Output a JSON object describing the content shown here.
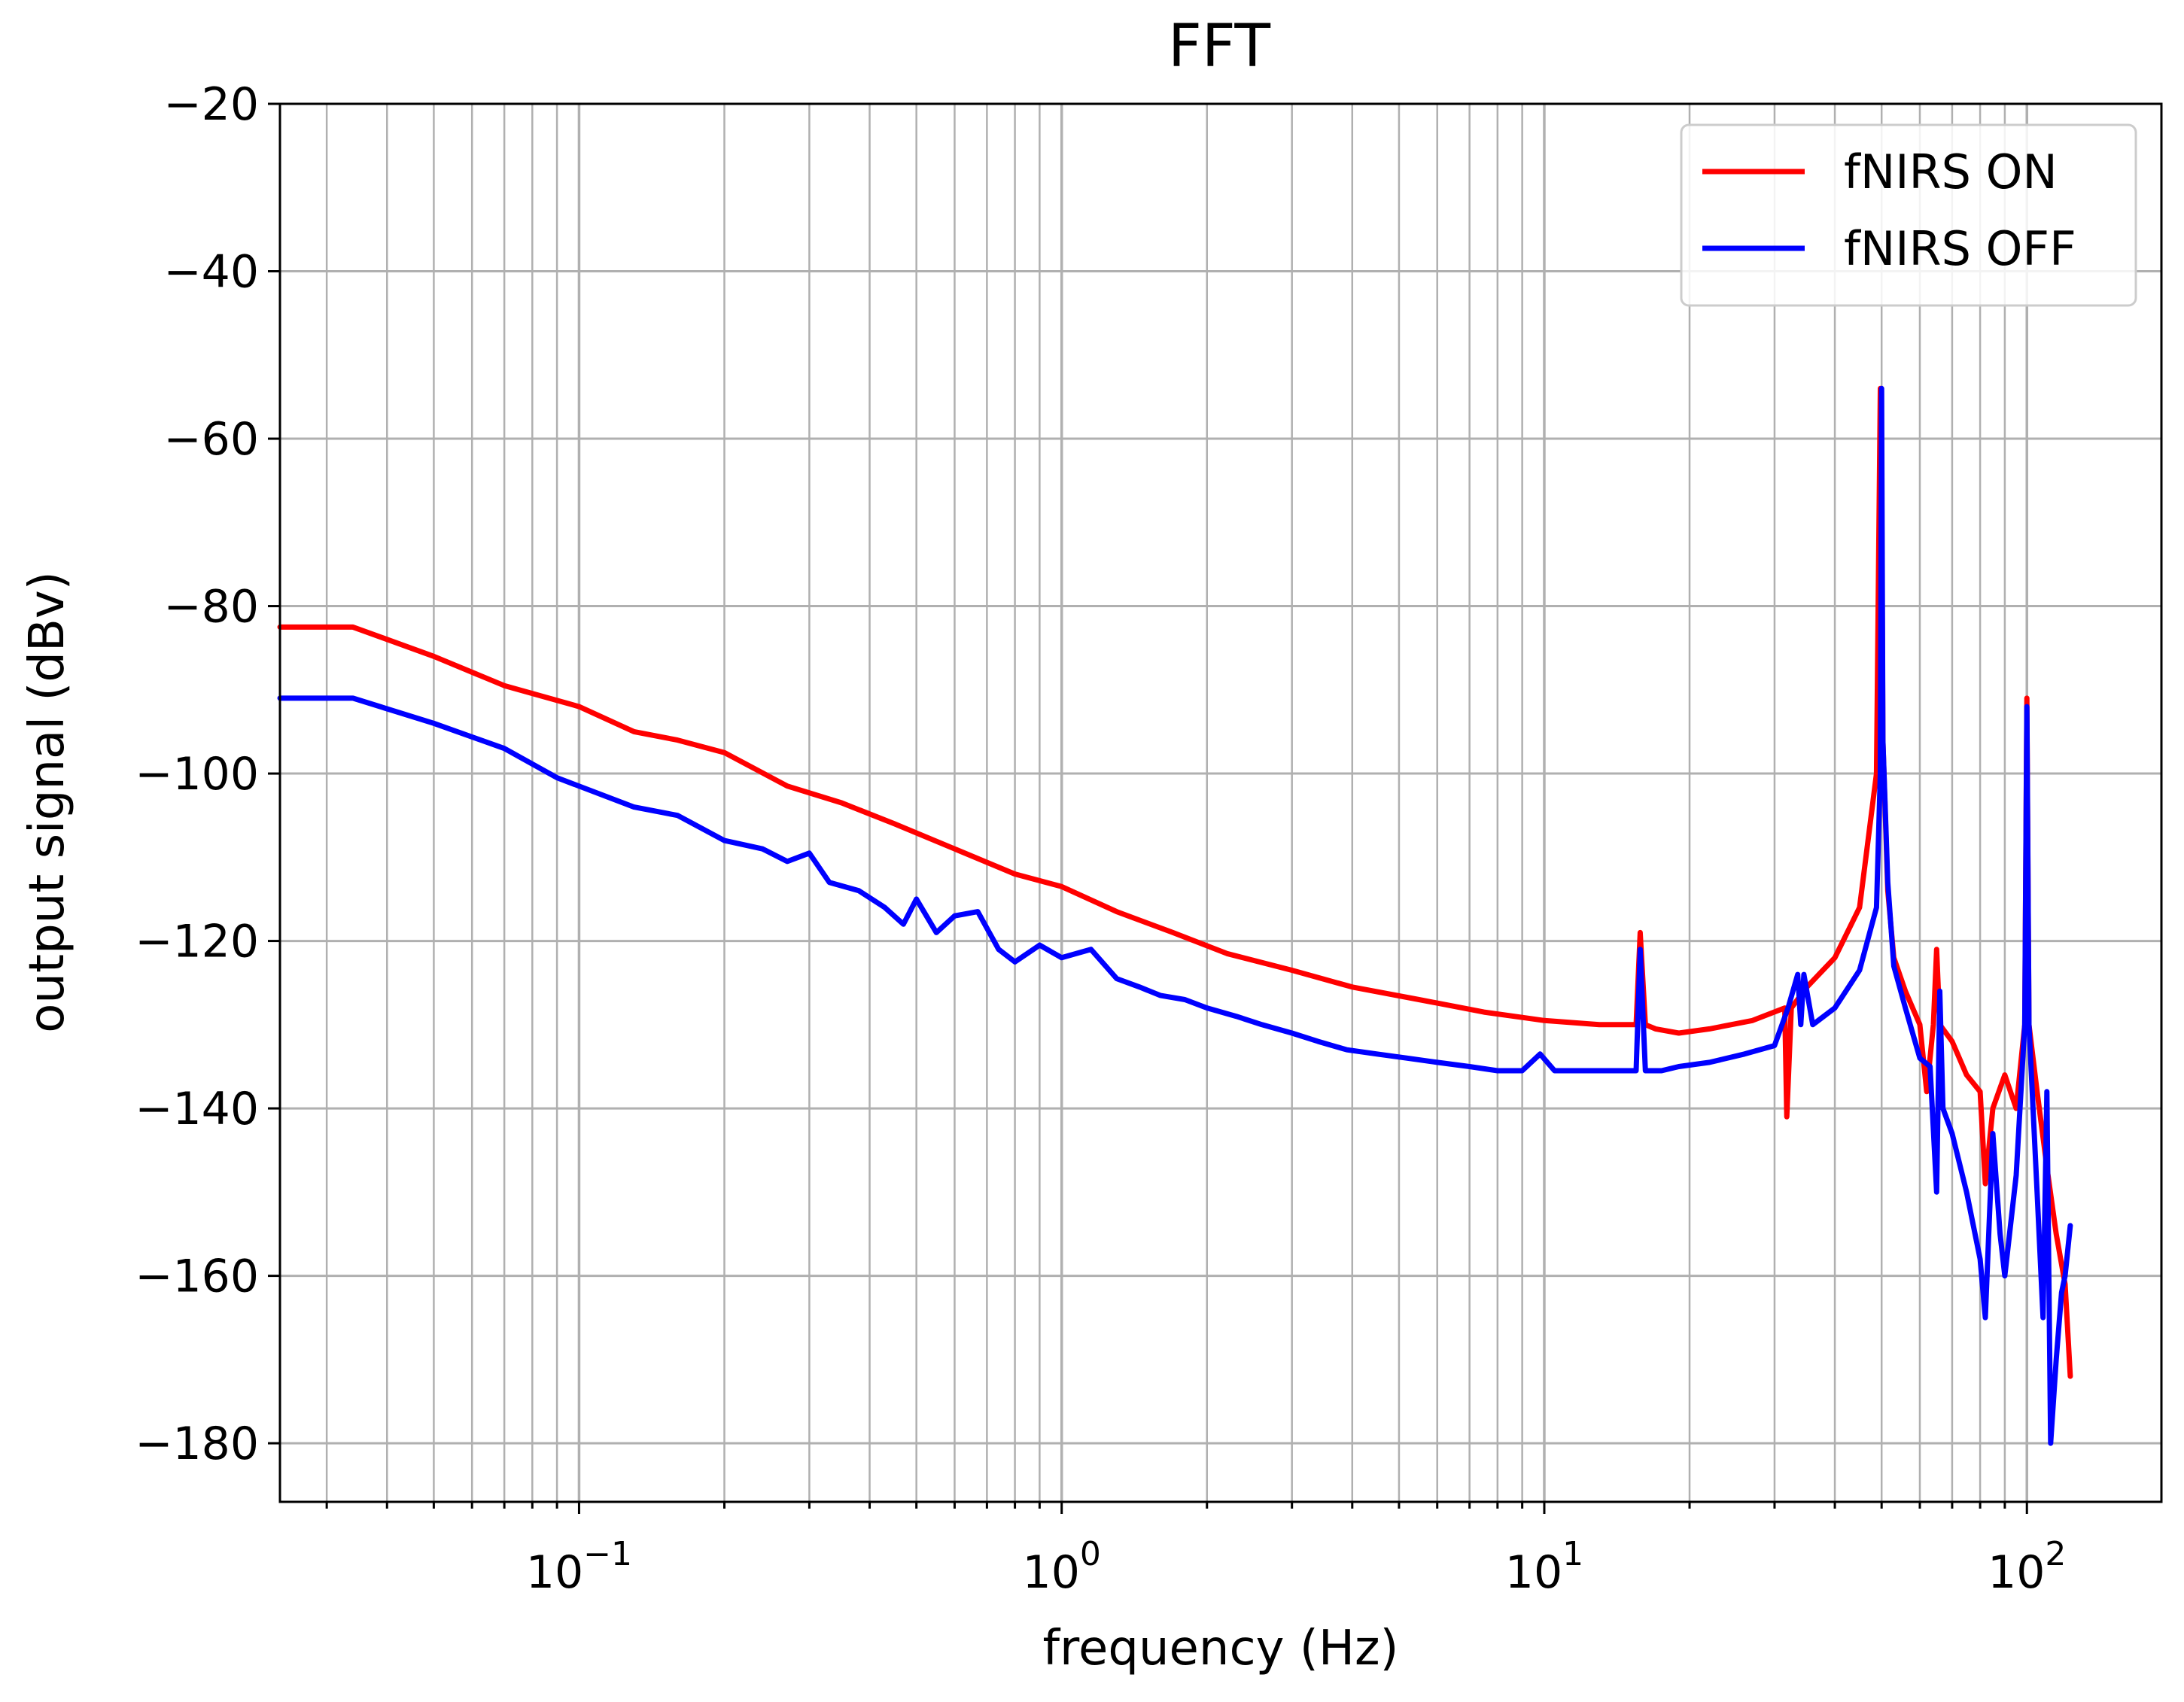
{
  "chart_data": {
    "type": "line",
    "title": "FFT",
    "xlabel": "frequency (Hz)",
    "ylabel": "output signal (dBv)",
    "xscale": "log",
    "xlim": [
      0.024,
      190
    ],
    "ylim": [
      -187,
      -20
    ],
    "yticks": [
      -20,
      -40,
      -60,
      -80,
      -100,
      -120,
      -140,
      -160,
      -180
    ],
    "ytick_labels": [
      "−20",
      "−40",
      "−60",
      "−80",
      "−100",
      "−120",
      "−140",
      "−160",
      "−180"
    ],
    "xticks": [
      {
        "base": "10",
        "exp": "−1",
        "value": 0.1
      },
      {
        "base": "10",
        "exp": "0",
        "value": 1
      },
      {
        "base": "10",
        "exp": "1",
        "value": 10
      },
      {
        "base": "10",
        "exp": "2",
        "value": 100
      }
    ],
    "grid": true,
    "legend_position": "top-right",
    "series": [
      {
        "name": "fNIRS ON",
        "color": "#ff0000",
        "x": [
          0.024,
          0.034,
          0.05,
          0.07,
          0.1,
          0.13,
          0.16,
          0.2,
          0.27,
          0.35,
          0.45,
          0.6,
          0.8,
          1.0,
          1.3,
          1.7,
          2.2,
          3.0,
          4.0,
          5.5,
          7.5,
          10,
          13,
          15.5,
          15.8,
          16.2,
          17,
          19,
          22,
          27,
          31.5,
          31.8,
          32.5,
          35,
          40,
          45,
          48.8,
          49.7,
          50,
          50.3,
          51.5,
          53,
          56,
          60,
          62,
          64,
          65,
          66,
          70,
          75,
          80,
          82,
          85,
          90,
          95,
          99,
          100,
          101,
          105,
          110,
          115,
          120,
          123
        ],
        "values": [
          -82.5,
          -82.5,
          -86,
          -89.5,
          -92,
          -95,
          -96,
          -97.5,
          -101.5,
          -103.5,
          -106,
          -109,
          -112,
          -113.5,
          -116.5,
          -119,
          -121.5,
          -123.5,
          -125.5,
          -127,
          -128.5,
          -129.5,
          -130,
          -130,
          -119,
          -130,
          -130.5,
          -131,
          -130.5,
          -129.5,
          -128,
          -141,
          -128,
          -125.5,
          -122,
          -116,
          -100,
          -54,
          -65,
          -96,
          -114,
          -122,
          -126,
          -130,
          -138,
          -130,
          -121,
          -130,
          -132,
          -136,
          -138,
          -149,
          -140,
          -136,
          -140,
          -130,
          -91,
          -130,
          -138,
          -147,
          -155,
          -161,
          -172
        ]
      },
      {
        "name": "fNIRS OFF",
        "color": "#0000ff",
        "x": [
          0.024,
          0.034,
          0.05,
          0.07,
          0.09,
          0.13,
          0.16,
          0.2,
          0.24,
          0.27,
          0.3,
          0.33,
          0.38,
          0.43,
          0.47,
          0.5,
          0.55,
          0.6,
          0.67,
          0.74,
          0.8,
          0.9,
          1.0,
          1.15,
          1.3,
          1.45,
          1.6,
          1.8,
          2.0,
          2.3,
          2.6,
          3.0,
          3.4,
          3.9,
          4.5,
          5.2,
          6.0,
          7.0,
          8.0,
          9.0,
          9.8,
          10.5,
          11.5,
          13,
          14,
          15.5,
          15.8,
          16.2,
          17.5,
          19,
          22,
          26,
          30,
          32,
          33.5,
          34,
          34.5,
          36,
          40,
          45,
          48.8,
          49.7,
          50,
          50.3,
          51.5,
          53,
          56,
          60,
          63,
          65,
          66,
          67,
          70,
          75,
          80,
          82,
          85,
          88,
          90,
          95,
          99,
          100,
          101,
          105,
          108,
          110,
          112,
          115,
          118,
          120,
          123
        ],
        "values": [
          -91,
          -91,
          -94,
          -97,
          -100.5,
          -104,
          -105,
          -108,
          -109,
          -110.5,
          -109.5,
          -113,
          -114,
          -116,
          -118,
          -115,
          -119,
          -117,
          -116.5,
          -121,
          -122.5,
          -120.5,
          -122,
          -121,
          -124.5,
          -125.5,
          -126.5,
          -127,
          -128,
          -129,
          -130,
          -131,
          -132,
          -133,
          -133.5,
          -134,
          -134.5,
          -135,
          -135.5,
          -135.5,
          -133.5,
          -135.5,
          -135.5,
          -135.5,
          -135.5,
          -135.5,
          -121,
          -135.5,
          -135.5,
          -135,
          -134.5,
          -133.5,
          -132.5,
          -128,
          -124,
          -130,
          -124,
          -130,
          -128,
          -123.5,
          -116,
          -100,
          -54,
          -96,
          -113,
          -123,
          -128,
          -134,
          -135,
          -150,
          -126,
          -140,
          -143,
          -150,
          -158,
          -165,
          -143,
          -155,
          -160,
          -148,
          -130,
          -92,
          -130,
          -150,
          -165,
          -138,
          -180,
          -170,
          -162,
          -160,
          -154
        ]
      }
    ]
  }
}
